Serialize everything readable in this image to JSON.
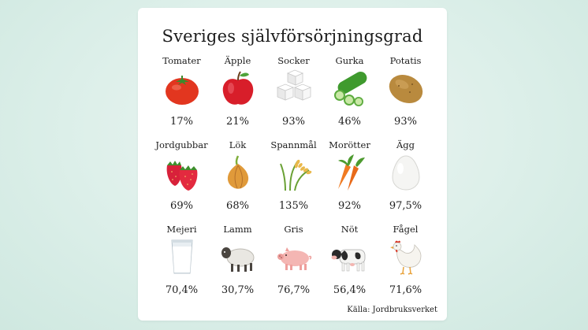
{
  "title": "Sveriges självförsörjningsgrad",
  "source": "Källa: Jordbruksverket",
  "items": [
    {
      "label": "Tomater",
      "value": "17%",
      "icon": "tomato-icon"
    },
    {
      "label": "Äpple",
      "value": "21%",
      "icon": "apple-icon"
    },
    {
      "label": "Socker",
      "value": "93%",
      "icon": "sugar-cubes-icon"
    },
    {
      "label": "Gurka",
      "value": "46%",
      "icon": "cucumber-icon"
    },
    {
      "label": "Potatis",
      "value": "93%",
      "icon": "potato-icon"
    },
    {
      "label": "Jordgubbar",
      "value": "69%",
      "icon": "strawberry-icon"
    },
    {
      "label": "Lök",
      "value": "68%",
      "icon": "onion-icon"
    },
    {
      "label": "Spannmål",
      "value": "135%",
      "icon": "grain-icon"
    },
    {
      "label": "Morötter",
      "value": "92%",
      "icon": "carrot-icon"
    },
    {
      "label": "Ägg",
      "value": "97,5%",
      "icon": "egg-icon"
    },
    {
      "label": "Mejeri",
      "value": "70,4%",
      "icon": "milk-glass-icon"
    },
    {
      "label": "Lamm",
      "value": "30,7%",
      "icon": "sheep-icon"
    },
    {
      "label": "Gris",
      "value": "76,7%",
      "icon": "pig-icon"
    },
    {
      "label": "Nöt",
      "value": "56,4%",
      "icon": "cow-icon"
    },
    {
      "label": "Fågel",
      "value": "71,6%",
      "icon": "chicken-icon"
    }
  ]
}
